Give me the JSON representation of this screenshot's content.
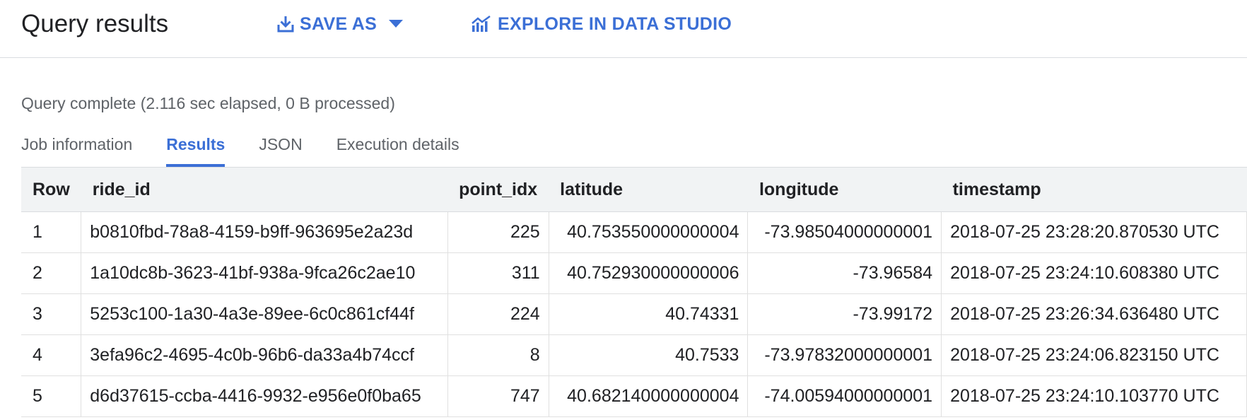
{
  "header": {
    "title": "Query results",
    "save_as_label": "SAVE AS",
    "explore_label": "EXPLORE IN DATA STUDIO",
    "accent_color": "#3b6fd6"
  },
  "status": "Query complete (2.116 sec elapsed, 0 B processed)",
  "tabs": [
    {
      "label": "Job information",
      "active": false
    },
    {
      "label": "Results",
      "active": true
    },
    {
      "label": "JSON",
      "active": false
    },
    {
      "label": "Execution details",
      "active": false
    }
  ],
  "table": {
    "columns": [
      "Row",
      "ride_id",
      "point_idx",
      "latitude",
      "longitude",
      "timestamp"
    ],
    "rows": [
      [
        "1",
        "b0810fbd-78a8-4159-b9ff-963695e2a23d",
        "225",
        "40.753550000000004",
        "-73.98504000000001",
        "2018-07-25 23:28:20.870530 UTC"
      ],
      [
        "2",
        "1a10dc8b-3623-41bf-938a-9fca26c2ae10",
        "311",
        "40.752930000000006",
        "-73.96584",
        "2018-07-25 23:24:10.608380 UTC"
      ],
      [
        "3",
        "5253c100-1a30-4a3e-89ee-6c0c861cf44f",
        "224",
        "40.74331",
        "-73.99172",
        "2018-07-25 23:26:34.636480 UTC"
      ],
      [
        "4",
        "3efa96c2-4695-4c0b-96b6-da33a4b74ccf",
        "8",
        "40.7533",
        "-73.97832000000001",
        "2018-07-25 23:24:06.823150 UTC"
      ],
      [
        "5",
        "d6d37615-ccba-4416-9932-e956e0f0ba65",
        "747",
        "40.682140000000004",
        "-74.00594000000001",
        "2018-07-25 23:24:10.103770 UTC"
      ]
    ]
  }
}
